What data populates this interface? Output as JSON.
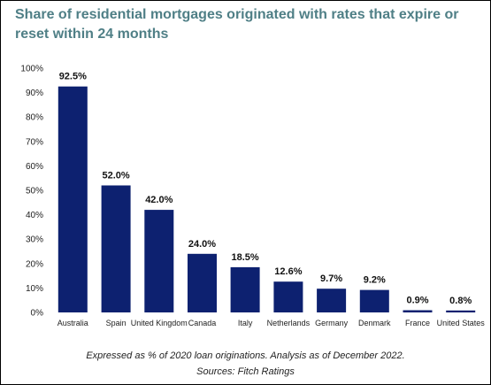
{
  "chart_data": {
    "type": "bar",
    "title": "Share of residential mortgages originated with rates that expire or reset within 24 months",
    "categories": [
      "Australia",
      "Spain",
      "United Kingdom",
      "Canada",
      "Italy",
      "Netherlands",
      "Germany",
      "Denmark",
      "France",
      "United States"
    ],
    "values": [
      92.5,
      52.0,
      42.0,
      24.0,
      18.5,
      12.6,
      9.7,
      9.2,
      0.9,
      0.8
    ],
    "data_labels": [
      "92.5%",
      "52.0%",
      "42.0%",
      "24.0%",
      "18.5%",
      "12.6%",
      "9.7%",
      "9.2%",
      "0.9%",
      "0.8%"
    ],
    "yticks": [
      "0%",
      "10%",
      "20%",
      "30%",
      "40%",
      "50%",
      "60%",
      "70%",
      "80%",
      "90%",
      "100%"
    ],
    "ylim": [
      0,
      100
    ],
    "grid": false,
    "bar_color": "#0d2170"
  },
  "notes": {
    "line1": "Expressed as % of 2020 loan originations. Analysis as of December 2022.",
    "line2": "Sources: Fitch Ratings"
  }
}
